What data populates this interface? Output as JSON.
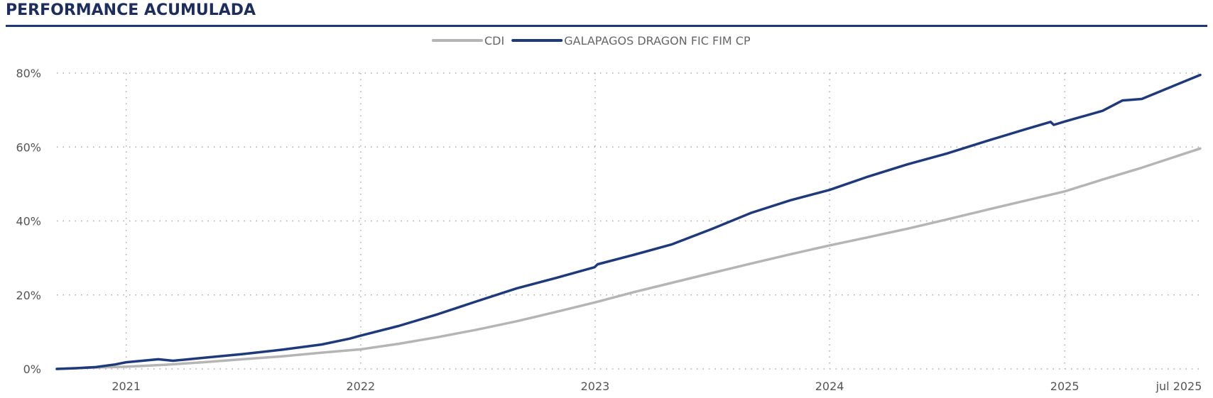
{
  "header": {
    "title": "PERFORMANCE ACUMULADA"
  },
  "colors": {
    "cdi": "#b5b5b5",
    "fund": "#1f3a7a",
    "grid": "#aaaaaa",
    "rule": "#1f3775"
  },
  "chart_data": {
    "type": "line",
    "title": "PERFORMANCE ACUMULADA",
    "xlabel": "",
    "ylabel": "",
    "ylim": [
      0,
      80
    ],
    "y_unit": "%",
    "y_ticks": [
      "0%",
      "20%",
      "40%",
      "60%",
      "80%"
    ],
    "y_tick_values": [
      0,
      20,
      40,
      60,
      80
    ],
    "x_ticks": [
      "2021",
      "2022",
      "2023",
      "2024",
      "2025",
      "jul 2025"
    ],
    "x_tick_values": [
      "2021-01-01",
      "2022-01-01",
      "2023-01-01",
      "2024-01-01",
      "2025-01-01",
      "2025-07-01"
    ],
    "xlim": [
      "2020-09-15",
      "2025-07-31"
    ],
    "grid": true,
    "legend_position": "top-center",
    "series": [
      {
        "name": "CDI",
        "color": "#b5b5b5",
        "x": [
          "2020-09-15",
          "2020-11-01",
          "2021-01-01",
          "2021-03-01",
          "2021-05-01",
          "2021-07-01",
          "2021-09-01",
          "2021-11-01",
          "2022-01-01",
          "2022-03-01",
          "2022-05-01",
          "2022-07-01",
          "2022-09-01",
          "2022-11-01",
          "2023-01-01",
          "2023-03-01",
          "2023-05-01",
          "2023-07-01",
          "2023-09-01",
          "2023-11-01",
          "2024-01-01",
          "2024-03-01",
          "2024-05-01",
          "2024-07-01",
          "2024-09-01",
          "2024-11-01",
          "2025-01-01",
          "2025-03-01",
          "2025-05-01",
          "2025-07-31"
        ],
        "values": [
          0,
          0.3,
          0.6,
          1.1,
          1.8,
          2.6,
          3.4,
          4.4,
          5.3,
          6.8,
          8.6,
          10.6,
          12.9,
          15.4,
          18.0,
          20.7,
          23.3,
          25.9,
          28.5,
          31.0,
          33.4,
          35.6,
          37.9,
          40.4,
          43.0,
          45.5,
          48.0,
          51.2,
          54.4,
          59.6
        ]
      },
      {
        "name": "GALAPAGOS DRAGON FIC FIM CP",
        "color": "#1f3a7a",
        "x": [
          "2020-09-15",
          "2020-10-15",
          "2020-11-15",
          "2020-12-15",
          "2021-01-01",
          "2021-02-01",
          "2021-02-20",
          "2021-03-15",
          "2021-05-01",
          "2021-07-01",
          "2021-09-01",
          "2021-11-01",
          "2021-12-15",
          "2022-01-01",
          "2022-03-01",
          "2022-05-01",
          "2022-07-01",
          "2022-09-01",
          "2022-11-01",
          "2022-12-31",
          "2023-01-05",
          "2023-03-01",
          "2023-05-01",
          "2023-07-01",
          "2023-09-01",
          "2023-11-01",
          "2024-01-01",
          "2024-03-01",
          "2024-05-01",
          "2024-07-01",
          "2024-09-01",
          "2024-11-01",
          "2024-12-10",
          "2024-12-15",
          "2025-01-01",
          "2025-03-01",
          "2025-04-01",
          "2025-05-01",
          "2025-07-31"
        ],
        "values": [
          0,
          0.2,
          0.5,
          1.2,
          1.8,
          2.3,
          2.6,
          2.2,
          3.0,
          4.0,
          5.2,
          6.6,
          8.2,
          9.0,
          11.6,
          14.8,
          18.3,
          21.8,
          24.6,
          27.5,
          28.3,
          30.8,
          33.7,
          37.8,
          42.2,
          45.6,
          48.4,
          52.0,
          55.3,
          58.2,
          61.6,
          64.8,
          66.8,
          66.0,
          66.9,
          69.8,
          72.6,
          73.0,
          79.5
        ]
      }
    ]
  }
}
